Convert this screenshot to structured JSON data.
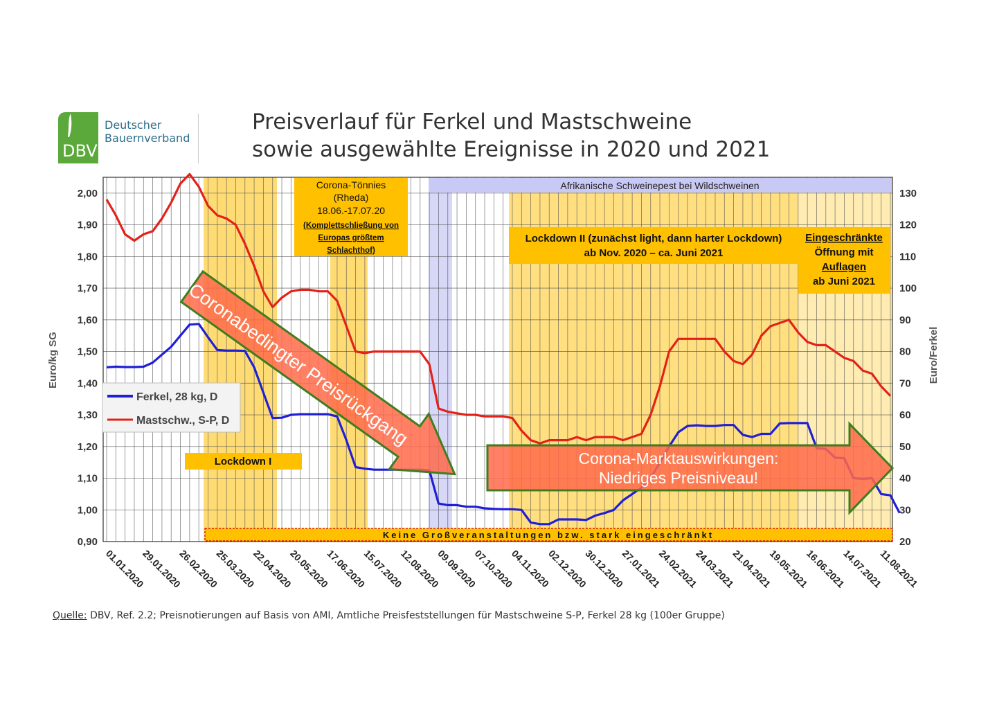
{
  "logo": {
    "abbr": "DBV",
    "name_line1": "Deutscher",
    "name_line2": "Bauernverband"
  },
  "header": {
    "title_line1": "Preisverlauf für Ferkel und Mastschweine",
    "title_line2": "sowie ausgewählte Ereignisse in 2020 und 2021"
  },
  "source": {
    "label": "Quelle:",
    "text": " DBV, Ref. 2.2; Preisnotierungen auf Basis von AMI, Amtliche Preisfeststellungen für Mastschweine S-P, Ferkel 28 kg (100er Gruppe)"
  },
  "colors": {
    "ferkel": "#1f1fd6",
    "mastschw": "#e32119",
    "band": "#ffc000",
    "band_light": "#ffe9a6",
    "asp": "#c9c9f5",
    "arrow": "#ff6a4a",
    "arrow_border": "#3f7d1f"
  },
  "chart_data": {
    "type": "line",
    "title": "Preisverlauf für Ferkel und Mastschweine sowie ausgewählte Ereignisse in 2020 und 2021",
    "ylabel": "Euro/kg SG",
    "y2label": "Euro/Ferkel",
    "ylim": [
      0.9,
      2.05
    ],
    "y2lim": [
      20,
      135
    ],
    "yticks": [
      "0,90",
      "1,00",
      "1,10",
      "1,20",
      "1,30",
      "1,40",
      "1,50",
      "1,60",
      "1,70",
      "1,80",
      "1,90",
      "2,00"
    ],
    "y2ticks": [
      "20",
      "30",
      "40",
      "50",
      "60",
      "70",
      "80",
      "90",
      "100",
      "110",
      "120",
      "130"
    ],
    "xticks": [
      "01.01.2020",
      "29.01.2020",
      "26.02.2020",
      "25.03.2020",
      "22.04.2020",
      "20.05.2020",
      "17.06.2020",
      "15.07.2020",
      "12.08.2020",
      "09.09.2020",
      "07.10.2020",
      "04.11.2020",
      "02.12.2020",
      "30.12.2020",
      "27.01.2021",
      "24.02.2021",
      "24.03.2021",
      "21.04.2021",
      "19.05.2021",
      "16.06.2021",
      "14.07.2021",
      "11.08.2021"
    ],
    "grid": true,
    "legend": "left",
    "series": [
      {
        "name": "Mastschw., S-P, D",
        "axis": "left",
        "values": [
          1.98,
          1.93,
          1.87,
          1.85,
          1.87,
          1.88,
          1.92,
          1.97,
          2.03,
          2.06,
          2.02,
          1.96,
          1.93,
          1.92,
          1.9,
          1.84,
          1.77,
          1.69,
          1.64,
          1.67,
          1.69,
          1.695,
          1.695,
          1.69,
          1.69,
          1.66,
          1.58,
          1.5,
          1.495,
          1.5,
          1.5,
          1.5,
          1.5,
          1.5,
          1.5,
          1.46,
          1.32,
          1.31,
          1.305,
          1.3,
          1.3,
          1.295,
          1.295,
          1.295,
          1.29,
          1.25,
          1.22,
          1.21,
          1.22,
          1.22,
          1.22,
          1.23,
          1.22,
          1.23,
          1.23,
          1.23,
          1.22,
          1.23,
          1.24,
          1.3,
          1.39,
          1.5,
          1.54,
          1.54,
          1.54,
          1.54,
          1.54,
          1.5,
          1.47,
          1.46,
          1.49,
          1.55,
          1.58,
          1.59,
          1.6,
          1.56,
          1.53,
          1.52,
          1.52,
          1.5,
          1.48,
          1.47,
          1.44,
          1.43,
          1.39,
          1.36
        ]
      },
      {
        "name": "Ferkel, 28 kg, D",
        "axis": "right",
        "values": [
          75,
          75.2,
          75.1,
          75.1,
          75.2,
          76.5,
          79,
          81.5,
          85,
          88.5,
          88.7,
          84.5,
          80.5,
          80.3,
          80.3,
          80.2,
          75,
          67,
          59,
          59.1,
          60,
          60.2,
          60.2,
          60.2,
          60.2,
          59.5,
          52,
          43.5,
          43,
          42.7,
          42.7,
          42.7,
          42.7,
          42.7,
          42.7,
          42.5,
          32,
          31.5,
          31.5,
          31,
          31,
          30.5,
          30.3,
          30.2,
          30.2,
          30,
          26,
          25.5,
          25.5,
          27,
          27,
          27,
          26.8,
          28.2,
          29,
          30,
          33,
          35,
          37,
          40,
          45,
          50,
          54.5,
          56.5,
          56.7,
          56.5,
          56.5,
          56.8,
          56.8,
          53.7,
          53,
          54,
          54,
          57.3,
          57.4,
          57.4,
          57.4,
          49.5,
          49.2,
          46.5,
          46.3,
          40,
          39.8,
          40,
          35,
          34.6,
          29
        ]
      }
    ]
  },
  "legend": {
    "ferkel": "Ferkel, 28 kg, D",
    "mastschw": "Mastschw., S-P, D"
  },
  "annotations": {
    "lockdown1": "Lockdown I",
    "toennies": [
      "Corona-Tönnies",
      "(Rheda)",
      "18.06.-17.07.20",
      "(Komplettschließung von",
      "Europas größtem",
      "Schlachthof)"
    ],
    "asp": "Afrikanische Schweinepest bei Wildschweinen",
    "lockdown2": [
      "Lockdown II (zunächst light, dann harter Lockdown)",
      "ab Nov. 2020 – ca. Juni 2021"
    ],
    "opening": [
      "Eingeschränkte",
      "Öffnung mit",
      "Auflagen",
      "ab Juni 2021"
    ],
    "no_events": "Keine Großveranstaltungen bzw. stark eingeschränkt",
    "arrow_down": "Coronabedingter Preisrückgang",
    "arrow_right": [
      "Corona-Marktauswirkungen:",
      "Niedriges Preisniveau!"
    ]
  }
}
